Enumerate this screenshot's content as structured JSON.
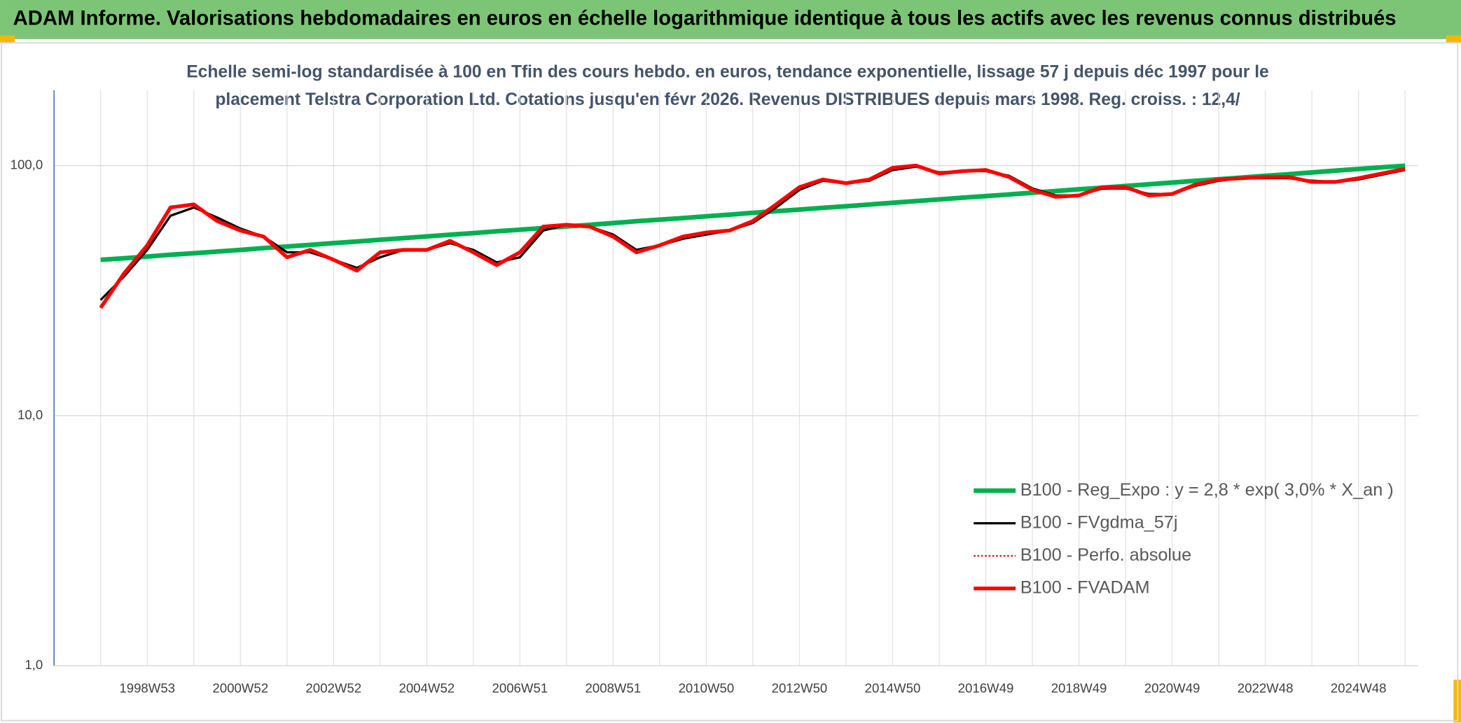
{
  "chart_data": {
    "type": "line",
    "header": "ADAM Informe. Valorisations hebdomadaires en euros en échelle logarithmique identique à tous les actifs avec les revenus connus distribués",
    "subtitle": [
      "Echelle semi-log standardisée à 100 en Tfin des cours hebdo. en euros, tendance exponentielle, lissage 57 j depuis déc 1997 pour le",
      "placement Telstra Corporation Ltd. Cotations jusqu'en févr 2026. Revenus DISTRIBUES depuis mars 1998. Reg. croiss. : 12,4/"
    ],
    "categories": [
      null,
      null,
      "1998W53",
      null,
      null,
      null,
      "2000W52",
      null,
      null,
      null,
      "2002W52",
      null,
      null,
      null,
      "2004W52",
      null,
      null,
      null,
      "2006W51",
      null,
      null,
      null,
      "2008W51",
      null,
      null,
      null,
      "2010W50",
      null,
      null,
      null,
      "2012W50",
      null,
      null,
      null,
      "2014W50",
      null,
      null,
      null,
      "2016W49",
      null,
      null,
      null,
      "2018W49",
      null,
      null,
      null,
      "2020W49",
      null,
      null,
      null,
      "2022W48",
      null,
      null,
      null,
      "2024W48",
      null,
      null
    ],
    "yscale": "log",
    "ylim": [
      1,
      200
    ],
    "yticks": [
      {
        "value": 1,
        "label": "1,0"
      },
      {
        "value": 10,
        "label": "10,0"
      },
      {
        "value": 100,
        "label": "100,0"
      }
    ],
    "grid": true,
    "legend": "lower right",
    "series": [
      {
        "name": "B100 - Reg_Expo : y = 2,8 * exp( 3,0% *  X_an )",
        "color": "#00b050",
        "width": 5,
        "dash": "none",
        "values": [
          42.0,
          42.6,
          43.3,
          44.0,
          44.6,
          45.3,
          46.0,
          46.8,
          47.5,
          48.2,
          49.0,
          49.7,
          50.5,
          51.3,
          52.1,
          52.9,
          53.7,
          54.6,
          55.4,
          56.3,
          57.1,
          58.0,
          58.9,
          59.9,
          60.8,
          61.7,
          62.7,
          63.7,
          64.7,
          65.7,
          66.7,
          67.8,
          68.8,
          69.9,
          71.0,
          72.1,
          73.2,
          74.4,
          75.5,
          76.7,
          77.9,
          79.1,
          80.4,
          81.6,
          82.9,
          84.2,
          85.5,
          86.9,
          88.2,
          89.6,
          91.0,
          92.4,
          93.9,
          95.4,
          96.9,
          98.4,
          99.9
        ]
      },
      {
        "name": "B100 - FVgdma_57j",
        "color": "#000000",
        "width": 2.5,
        "dash": "none",
        "values": [
          29,
          36,
          46,
          63,
          68,
          62,
          56,
          52,
          45,
          45,
          42,
          39,
          43,
          46,
          46,
          49,
          46,
          41,
          43,
          55,
          58,
          57,
          53,
          46,
          48,
          51,
          53,
          55,
          59,
          68,
          80,
          87,
          85,
          87,
          96,
          99,
          94,
          95,
          95,
          91,
          81,
          76,
          76,
          81,
          81,
          77,
          77,
          83,
          87,
          89,
          89,
          89,
          87,
          86,
          88,
          92,
          96
        ]
      },
      {
        "name": "B100 - Perfo. absolue",
        "color": "#c00000",
        "width": 1.5,
        "dash": "2 2",
        "values": [
          27,
          37,
          48,
          68,
          70,
          60,
          55,
          52,
          43,
          46,
          42,
          38,
          45,
          46,
          46,
          50,
          45,
          40,
          45,
          57,
          58,
          57,
          52,
          45,
          48,
          52,
          54,
          55,
          60,
          70,
          82,
          88,
          85,
          88,
          98,
          100,
          93,
          95,
          96,
          90,
          80,
          75,
          76,
          82,
          82,
          76,
          77,
          84,
          88,
          89,
          90,
          90,
          86,
          86,
          89,
          93,
          97
        ]
      },
      {
        "name": "B100 - FVADAM",
        "color": "#ff0000",
        "width": 4,
        "dash": "none",
        "values": [
          27,
          37,
          48,
          68,
          70,
          60,
          55,
          52,
          43,
          46,
          42,
          38,
          45,
          46,
          46,
          50,
          45,
          40,
          45,
          57,
          58,
          57,
          52,
          45,
          48,
          52,
          54,
          55,
          60,
          70,
          82,
          88,
          85,
          88,
          98,
          100,
          93,
          95,
          96,
          90,
          80,
          75,
          76,
          82,
          82,
          76,
          77,
          84,
          88,
          89,
          90,
          90,
          86,
          86,
          89,
          93,
          97
        ]
      }
    ]
  }
}
